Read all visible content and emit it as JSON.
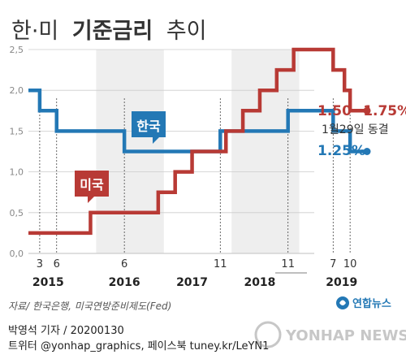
{
  "header": {
    "title_light": "한·미",
    "title_bold": "기준금리",
    "title_tail": "추이"
  },
  "colors": {
    "korea": "#2378b5",
    "us": "#b83a35",
    "grid": "#cccccc",
    "band": "#eeeeee",
    "axis_text": "#888888"
  },
  "chart_data": {
    "type": "line",
    "title": "한·미 기준금리 추이",
    "ylim": [
      0,
      2.5
    ],
    "y_ticks": [
      "0,0",
      "0,5",
      "1,0",
      "1,5",
      "2,0",
      "2,5"
    ],
    "y_tick_values": [
      0,
      0.5,
      1.0,
      1.5,
      2.0,
      2.5
    ],
    "grid": true,
    "x_month_ticks": [
      {
        "label": "3",
        "year": 2015,
        "month": 3
      },
      {
        "label": "6",
        "year": 2015,
        "month": 6
      },
      {
        "label": "6",
        "year": 2016,
        "month": 6
      },
      {
        "label": "11",
        "year": 2017,
        "month": 11
      },
      {
        "label": "11",
        "year": 2018,
        "month": 11
      },
      {
        "label": "7",
        "year": 2019,
        "month": 7
      },
      {
        "label": "10",
        "year": 2019,
        "month": 10
      }
    ],
    "x_year_labels": [
      {
        "label": "2015",
        "year": 2015,
        "month": 4.5
      },
      {
        "label": "2016",
        "year": 2016,
        "month": 6
      },
      {
        "label": "2017",
        "year": 2017,
        "month": 6
      },
      {
        "label": "2018",
        "year": 2018,
        "month": 6
      },
      {
        "label": "2019",
        "year": 2019,
        "month": 8.5
      }
    ],
    "series": [
      {
        "name": "한국",
        "color": "#2378b5",
        "steps": [
          [
            "2015-01",
            2.0
          ],
          [
            "2015-03",
            1.75
          ],
          [
            "2015-06",
            1.5
          ],
          [
            "2016-06",
            1.25
          ],
          [
            "2017-11",
            1.5
          ],
          [
            "2018-11",
            1.75
          ],
          [
            "2019-07",
            1.5
          ],
          [
            "2019-10",
            1.25
          ],
          [
            "2020-01",
            1.25
          ]
        ],
        "end_label": "1.25%"
      },
      {
        "name": "미국",
        "color": "#b83a35",
        "steps": [
          [
            "2015-01",
            0.25
          ],
          [
            "2015-12",
            0.5
          ],
          [
            "2016-12",
            0.75
          ],
          [
            "2017-03",
            1.0
          ],
          [
            "2017-06",
            1.25
          ],
          [
            "2017-12",
            1.5
          ],
          [
            "2018-03",
            1.75
          ],
          [
            "2018-06",
            2.0
          ],
          [
            "2018-09",
            2.25
          ],
          [
            "2018-12",
            2.5
          ],
          [
            "2019-07",
            2.25
          ],
          [
            "2019-09",
            2.0
          ],
          [
            "2019-10",
            1.75
          ],
          [
            "2020-01",
            1.75
          ]
        ],
        "end_label": "1.50~1.75%",
        "end_note": "1월29일 동결"
      }
    ]
  },
  "source": "자료/ 한국은행, 미국연방준비제도(Fed)",
  "logo": {
    "text": "연합뉴스"
  },
  "credit_line1": "박영석 기자 /  20200130",
  "credit_line2": "트위터 @yonhap_graphics, 페이스북 tuney.kr/LeYN1",
  "watermark": "YONHAP NEWS"
}
